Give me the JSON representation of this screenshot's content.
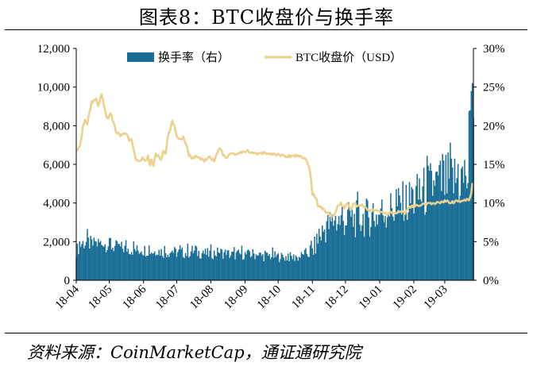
{
  "header": {
    "title": "图表8：BTC收盘价与换手率"
  },
  "footer": {
    "source": "资料来源：CoinMarketCap，通证通研究院"
  },
  "colors": {
    "turnover": "#1b6e97",
    "price": "#ecd08c",
    "axis": "#000000"
  },
  "chart_data": {
    "type": "bar",
    "title": "图表8：BTC收盘价与换手率",
    "x_tick_labels": [
      "18-04",
      "18-05",
      "18-06",
      "18-07",
      "18-08",
      "18-09",
      "18-10",
      "18-11",
      "18-12",
      "19-01",
      "19-02",
      "19-03"
    ],
    "y_left": {
      "ticks": [
        "0",
        "2,000",
        "4,000",
        "6,000",
        "8,000",
        "10,000",
        "12,000"
      ],
      "min": 0,
      "max": 12000
    },
    "y_right": {
      "ticks": [
        "0%",
        "5%",
        "10%",
        "15%",
        "20%",
        "25%",
        "30%"
      ],
      "min": 0,
      "max": 30
    },
    "grid": false,
    "legend": "top",
    "series": [
      {
        "name": "换手率（右）",
        "type": "bar",
        "axis": "right",
        "unit": "%",
        "anchors": [
          [
            0,
            3.8
          ],
          [
            5,
            4.8
          ],
          [
            10,
            4.9
          ],
          [
            15,
            4.6
          ],
          [
            20,
            4.8
          ],
          [
            25,
            4.7
          ],
          [
            30,
            4.5
          ],
          [
            35,
            4.3
          ],
          [
            40,
            4.2
          ],
          [
            45,
            4.1
          ],
          [
            50,
            4.0
          ],
          [
            55,
            3.9
          ],
          [
            60,
            3.9
          ],
          [
            65,
            3.9
          ],
          [
            70,
            3.7
          ],
          [
            75,
            3.8
          ],
          [
            80,
            3.6
          ],
          [
            85,
            3.7
          ],
          [
            90,
            3.6
          ],
          [
            95,
            3.6
          ],
          [
            100,
            3.5
          ],
          [
            105,
            3.8
          ],
          [
            110,
            3.6
          ],
          [
            115,
            3.5
          ],
          [
            120,
            3.4
          ],
          [
            125,
            3.5
          ],
          [
            130,
            3.6
          ],
          [
            135,
            3.5
          ],
          [
            140,
            3.3
          ],
          [
            145,
            3.3
          ],
          [
            150,
            3.4
          ],
          [
            155,
            3.3
          ],
          [
            160,
            3.4
          ],
          [
            165,
            3.3
          ],
          [
            170,
            3.1
          ],
          [
            175,
            3.2
          ],
          [
            180,
            3.1
          ],
          [
            185,
            3.0
          ],
          [
            190,
            3.0
          ],
          [
            195,
            3.0
          ],
          [
            200,
            2.9
          ],
          [
            205,
            3.2
          ],
          [
            210,
            3.6
          ],
          [
            215,
            4.0
          ],
          [
            220,
            5.5
          ],
          [
            225,
            6.6
          ],
          [
            230,
            7.2
          ],
          [
            235,
            7.8
          ],
          [
            240,
            7.6
          ],
          [
            245,
            7.9
          ],
          [
            250,
            7.8
          ],
          [
            255,
            7.9
          ],
          [
            260,
            8.0
          ],
          [
            265,
            8.2
          ],
          [
            270,
            8.2
          ],
          [
            275,
            8.5
          ],
          [
            280,
            9.0
          ],
          [
            285,
            9.1
          ],
          [
            290,
            9.4
          ],
          [
            295,
            9.7
          ],
          [
            300,
            10.0
          ],
          [
            305,
            10.4
          ],
          [
            310,
            10.8
          ],
          [
            315,
            11.3
          ],
          [
            320,
            11.8
          ],
          [
            325,
            12.3
          ],
          [
            330,
            12.4
          ],
          [
            335,
            12.6
          ],
          [
            340,
            12.8
          ],
          [
            345,
            13.0
          ],
          [
            350,
            13.2
          ],
          [
            355,
            13.1
          ],
          [
            357,
            22.0
          ],
          [
            358,
            24.5
          ],
          [
            359,
            25.5
          ],
          [
            360,
            21.0
          ]
        ]
      },
      {
        "name": "BTC收盘价（USD）",
        "type": "line",
        "axis": "left",
        "unit": "USD",
        "anchors": [
          [
            0,
            6800
          ],
          [
            1,
            6700
          ],
          [
            3,
            6900
          ],
          [
            4,
            7100
          ],
          [
            6,
            7900
          ],
          [
            8,
            8300
          ],
          [
            10,
            8100
          ],
          [
            12,
            8700
          ],
          [
            14,
            9200
          ],
          [
            16,
            9300
          ],
          [
            18,
            9400
          ],
          [
            20,
            9000
          ],
          [
            22,
            9500
          ],
          [
            23,
            9700
          ],
          [
            25,
            9100
          ],
          [
            27,
            8500
          ],
          [
            29,
            8400
          ],
          [
            31,
            8700
          ],
          [
            33,
            8300
          ],
          [
            36,
            7700
          ],
          [
            40,
            7500
          ],
          [
            44,
            7600
          ],
          [
            46,
            7500
          ],
          [
            48,
            7200
          ],
          [
            50,
            7300
          ],
          [
            52,
            6800
          ],
          [
            54,
            6300
          ],
          [
            57,
            6100
          ],
          [
            60,
            6300
          ],
          [
            63,
            6200
          ],
          [
            65,
            6400
          ],
          [
            66,
            6150
          ],
          [
            67,
            6000
          ],
          [
            68,
            6200
          ],
          [
            70,
            6000
          ],
          [
            72,
            6500
          ],
          [
            75,
            6400
          ],
          [
            77,
            6200
          ],
          [
            79,
            6700
          ],
          [
            81,
            6500
          ],
          [
            83,
            7400
          ],
          [
            85,
            7800
          ],
          [
            87,
            8200
          ],
          [
            89,
            8000
          ],
          [
            91,
            7500
          ],
          [
            94,
            7300
          ],
          [
            97,
            7400
          ],
          [
            100,
            7000
          ],
          [
            102,
            6500
          ],
          [
            105,
            6300
          ],
          [
            108,
            6400
          ],
          [
            112,
            6300
          ],
          [
            116,
            6200
          ],
          [
            120,
            6400
          ],
          [
            125,
            6200
          ],
          [
            130,
            6900
          ],
          [
            133,
            6500
          ],
          [
            136,
            6300
          ],
          [
            140,
            6600
          ],
          [
            145,
            6500
          ],
          [
            150,
            6600
          ],
          [
            155,
            6700
          ],
          [
            160,
            6600
          ],
          [
            165,
            6500
          ],
          [
            170,
            6600
          ],
          [
            175,
            6550
          ],
          [
            180,
            6500
          ],
          [
            185,
            6500
          ],
          [
            190,
            6400
          ],
          [
            195,
            6450
          ],
          [
            200,
            6450
          ],
          [
            205,
            6400
          ],
          [
            208,
            6300
          ],
          [
            210,
            6000
          ],
          [
            212,
            5600
          ],
          [
            214,
            4500
          ],
          [
            217,
            4300
          ],
          [
            219,
            3900
          ],
          [
            222,
            3800
          ],
          [
            225,
            3600
          ],
          [
            228,
            3500
          ],
          [
            231,
            3300
          ],
          [
            234,
            3400
          ],
          [
            237,
            3800
          ],
          [
            240,
            3950
          ],
          [
            243,
            3700
          ],
          [
            246,
            4000
          ],
          [
            249,
            3700
          ],
          [
            252,
            4000
          ],
          [
            255,
            3800
          ],
          [
            258,
            3900
          ],
          [
            262,
            3750
          ],
          [
            266,
            3650
          ],
          [
            270,
            3600
          ],
          [
            274,
            3550
          ],
          [
            278,
            3500
          ],
          [
            282,
            3450
          ],
          [
            286,
            3500
          ],
          [
            290,
            3500
          ],
          [
            294,
            3550
          ],
          [
            298,
            3500
          ],
          [
            302,
            3800
          ],
          [
            306,
            3850
          ],
          [
            310,
            3850
          ],
          [
            314,
            3900
          ],
          [
            318,
            3950
          ],
          [
            322,
            3950
          ],
          [
            326,
            4000
          ],
          [
            330,
            4050
          ],
          [
            334,
            4100
          ],
          [
            338,
            4050
          ],
          [
            342,
            4050
          ],
          [
            346,
            4100
          ],
          [
            350,
            4100
          ],
          [
            354,
            4150
          ],
          [
            356,
            4200
          ],
          [
            358,
            4500
          ],
          [
            359,
            5000
          ],
          [
            360,
            5000
          ]
        ]
      }
    ]
  }
}
